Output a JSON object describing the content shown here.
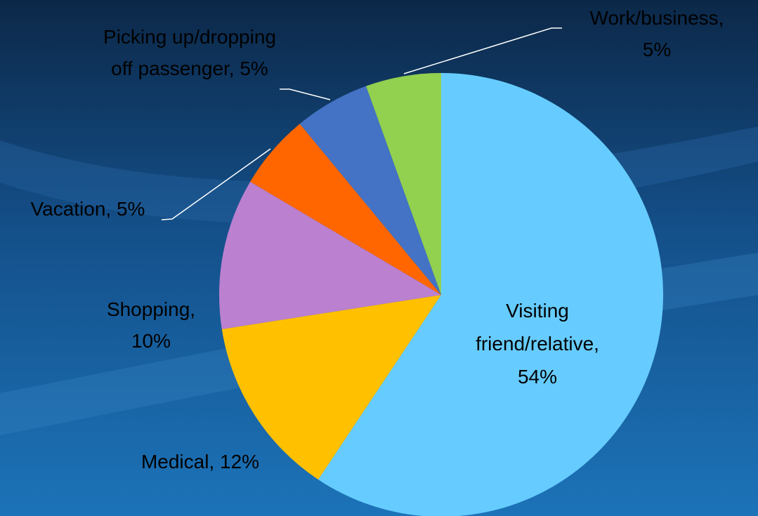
{
  "chart_data": {
    "type": "pie",
    "values": [
      54,
      12,
      10,
      5,
      5,
      5
    ],
    "value_labels": [
      "Visiting friend/relative, 54%",
      "Medical, 12%",
      "Shopping, 10%",
      "Vacation, 5%",
      "Picking up/dropping off passenger, 5%",
      "Work/business, 5%"
    ],
    "colors": [
      "#66ccff",
      "#ffc000",
      "#bb80d0",
      "#ff6600",
      "#4472c4",
      "#92d050"
    ]
  }
}
